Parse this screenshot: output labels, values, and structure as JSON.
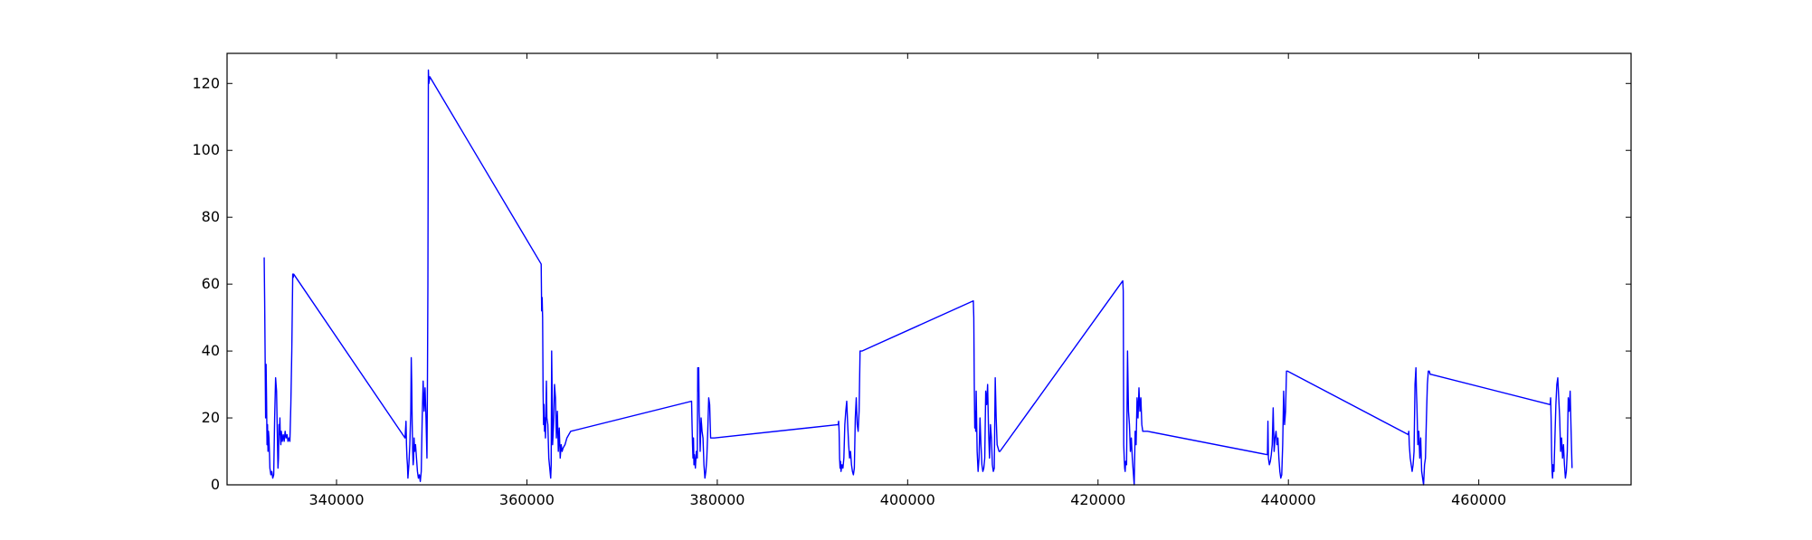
{
  "chart_data": {
    "type": "line",
    "title": "",
    "xlabel": "",
    "ylabel": "",
    "xlim": [
      328500,
      476000
    ],
    "ylim": [
      0,
      129
    ],
    "grid": false,
    "legend": "none",
    "x_ticks": [
      340000,
      360000,
      380000,
      400000,
      420000,
      440000,
      460000
    ],
    "y_ticks": [
      0,
      20,
      40,
      60,
      80,
      100,
      120
    ],
    "x_tick_labels": [
      "340000",
      "360000",
      "380000",
      "400000",
      "420000",
      "440000",
      "460000"
    ],
    "y_tick_labels": [
      "0",
      "20",
      "40",
      "60",
      "80",
      "100",
      "120"
    ],
    "series": [
      {
        "color": "#0000ff",
        "x": [
          332400,
          332450,
          332500,
          332550,
          332600,
          332650,
          332700,
          332750,
          332800,
          332850,
          332900,
          332950,
          333000,
          333100,
          333200,
          333300,
          333400,
          333500,
          333600,
          333700,
          333800,
          333850,
          333900,
          333950,
          334000,
          334050,
          334100,
          334150,
          334200,
          334300,
          334400,
          334500,
          334600,
          334700,
          334800,
          334900,
          335000,
          335100,
          335200,
          335300,
          335400,
          335450,
          335500,
          347200,
          347300,
          347350,
          347400,
          347450,
          347500,
          347550,
          347600,
          347700,
          347800,
          347850,
          347900,
          347950,
          348000,
          348050,
          348100,
          348150,
          348200,
          348300,
          348400,
          348500,
          348600,
          348700,
          348800,
          348900,
          349000,
          349100,
          349200,
          349300,
          349400,
          349500,
          349550,
          349600,
          349650,
          349700,
          349800,
          361500,
          361550,
          361600,
          361650,
          361700,
          361750,
          361800,
          361850,
          361900,
          361950,
          362000,
          362050,
          362100,
          362200,
          362300,
          362400,
          362500,
          362550,
          362600,
          362650,
          362700,
          362800,
          362900,
          363000,
          363100,
          363200,
          363300,
          363400,
          363500,
          363600,
          363700,
          363800,
          364000,
          364200,
          364400,
          364600,
          377300,
          377350,
          377400,
          377450,
          377500,
          377550,
          377600,
          377700,
          377800,
          377900,
          377950,
          378000,
          378050,
          378100,
          378150,
          378200,
          378300,
          378400,
          378500,
          378600,
          378700,
          378800,
          378900,
          379000,
          379100,
          379200,
          379300,
          379400,
          379500,
          379600,
          379700,
          392700,
          392750,
          392800,
          392850,
          392900,
          392950,
          393000,
          393100,
          393200,
          393300,
          393400,
          393500,
          393600,
          393700,
          393800,
          393900,
          394000,
          394100,
          394200,
          394300,
          394400,
          394500,
          394600,
          394700,
          394800,
          394900,
          395000,
          395100,
          395200,
          406900,
          406950,
          407000,
          407050,
          407100,
          407150,
          407200,
          407300,
          407400,
          407500,
          407600,
          407700,
          407800,
          407900,
          408000,
          408100,
          408200,
          408300,
          408400,
          408500,
          408600,
          408700,
          408800,
          408900,
          409000,
          409100,
          409200,
          409300,
          409400,
          409500,
          409600,
          409700,
          422600,
          422650,
          422700,
          422750,
          422800,
          422850,
          422900,
          423000,
          423100,
          423200,
          423300,
          423400,
          423500,
          423600,
          423700,
          423800,
          423900,
          424000,
          424100,
          424200,
          424300,
          424400,
          424500,
          424600,
          424700,
          424800,
          424900,
          425000,
          425100,
          425200,
          437800,
          437850,
          437900,
          438000,
          438100,
          438200,
          438300,
          438400,
          438500,
          438600,
          438700,
          438800,
          438900,
          439000,
          439100,
          439200,
          439300,
          439400,
          439500,
          439600,
          439700,
          439800,
          439900,
          452600,
          452650,
          452700,
          452750,
          452800,
          452900,
          453000,
          453100,
          453200,
          453300,
          453400,
          453450,
          453500,
          453550,
          453600,
          453700,
          453800,
          453900,
          454000,
          454100,
          454200,
          454300,
          454400,
          454500,
          454600,
          454700,
          454800,
          454900,
          455000,
          467500,
          467550,
          467600,
          467650,
          467700,
          467750,
          467800,
          467900,
          468000,
          468100,
          468200,
          468300,
          468400,
          468500,
          468600,
          468700,
          468800,
          468900,
          469000,
          469100,
          469200,
          469300,
          469400,
          469500,
          469600,
          469700,
          469800
        ],
        "y": [
          68,
          55,
          38,
          20,
          36,
          25,
          12,
          18,
          10,
          16,
          14,
          10,
          5,
          3,
          4,
          2,
          3,
          20,
          32,
          28,
          12,
          5,
          8,
          18,
          15,
          20,
          14,
          12,
          16,
          13,
          15,
          13,
          16,
          14,
          15,
          13,
          14,
          13,
          24,
          40,
          63,
          62,
          63,
          14,
          19,
          12,
          8,
          6,
          2,
          4,
          6,
          12,
          22,
          38,
          30,
          18,
          10,
          6,
          8,
          14,
          10,
          12,
          8,
          4,
          2,
          3,
          1,
          4,
          20,
          31,
          22,
          29,
          20,
          8,
          30,
          60,
          124,
          120,
          122,
          66,
          52,
          56,
          50,
          28,
          18,
          24,
          16,
          20,
          14,
          22,
          31,
          20,
          18,
          8,
          5,
          2,
          6,
          40,
          28,
          12,
          18,
          30,
          26,
          14,
          22,
          10,
          17,
          8,
          12,
          10,
          11,
          12,
          14,
          15,
          16,
          25,
          18,
          12,
          8,
          14,
          6,
          9,
          5,
          10,
          8,
          35,
          28,
          35,
          22,
          18,
          10,
          20,
          16,
          14,
          6,
          2,
          4,
          8,
          16,
          26,
          24,
          14,
          14,
          14,
          14,
          14,
          18,
          19,
          16,
          8,
          5,
          7,
          4,
          6,
          5,
          8,
          18,
          22,
          25,
          18,
          12,
          8,
          10,
          6,
          4,
          3,
          5,
          20,
          26,
          18,
          16,
          22,
          40,
          40,
          40,
          55,
          50,
          30,
          17,
          22,
          16,
          28,
          10,
          4,
          8,
          20,
          12,
          6,
          4,
          5,
          8,
          28,
          24,
          30,
          16,
          8,
          18,
          14,
          6,
          4,
          5,
          32,
          20,
          12,
          11,
          10,
          10,
          61,
          58,
          12,
          8,
          5,
          4,
          7,
          6,
          40,
          22,
          18,
          10,
          14,
          8,
          4,
          0,
          16,
          12,
          26,
          20,
          29,
          22,
          26,
          18,
          16,
          16,
          16,
          16,
          16,
          16,
          9,
          19,
          8,
          6,
          7,
          9,
          12,
          23,
          10,
          14,
          16,
          12,
          14,
          8,
          4,
          2,
          3,
          12,
          28,
          18,
          22,
          34,
          34,
          15,
          16,
          12,
          10,
          8,
          6,
          4,
          6,
          10,
          30,
          35,
          28,
          24,
          18,
          12,
          16,
          8,
          14,
          4,
          2,
          0,
          6,
          8,
          20,
          30,
          34,
          34,
          33,
          33,
          24,
          26,
          20,
          10,
          4,
          2,
          6,
          4,
          14,
          24,
          30,
          32,
          26,
          20,
          10,
          14,
          8,
          12,
          6,
          2,
          4,
          10,
          26,
          22,
          28,
          16,
          5
        ]
      }
    ]
  }
}
